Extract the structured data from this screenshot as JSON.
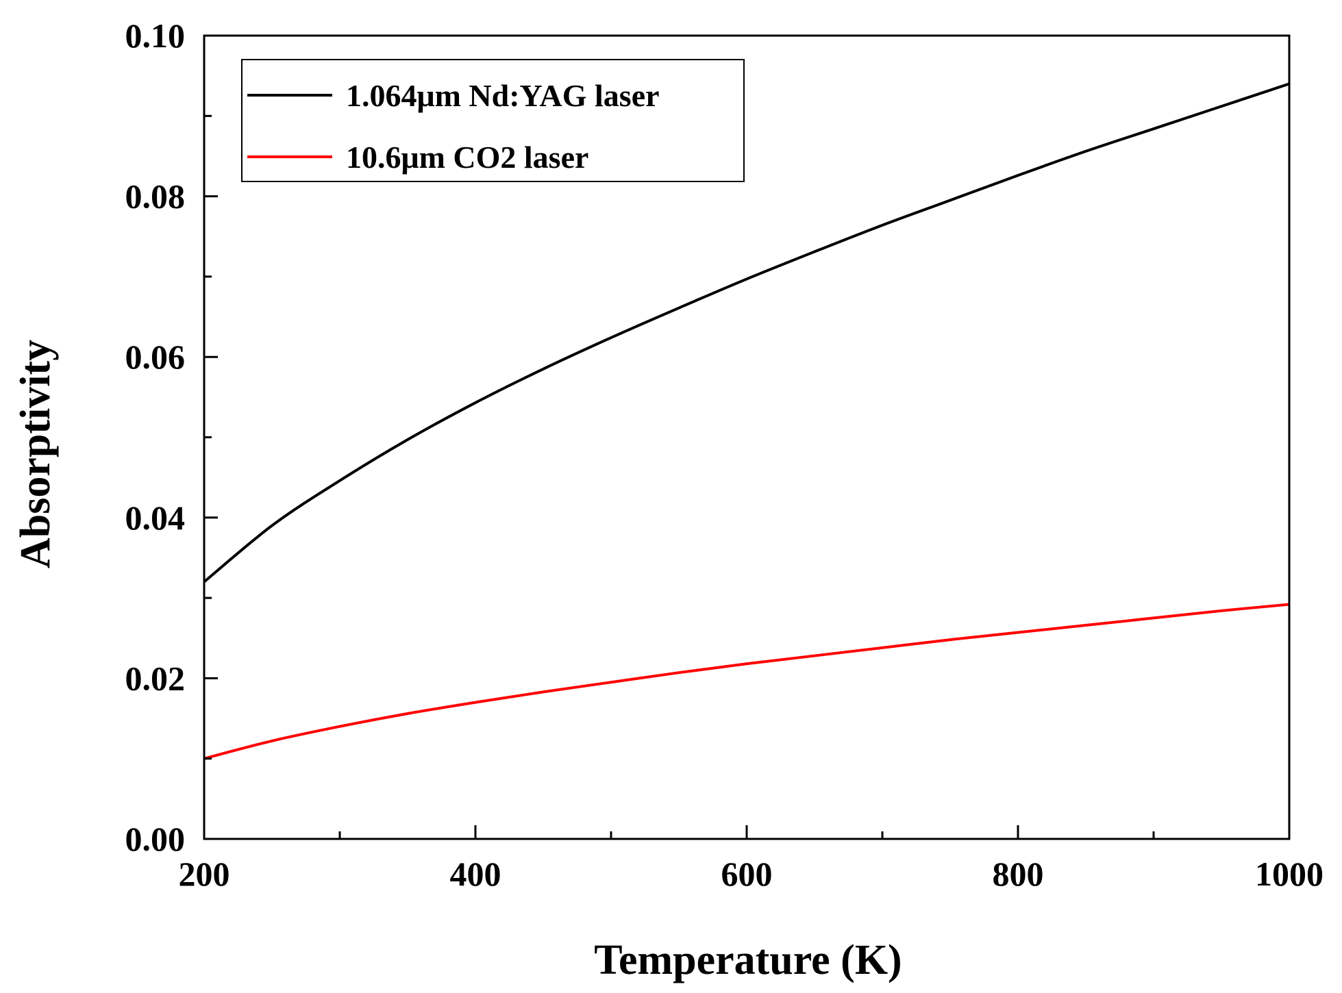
{
  "chart_data": {
    "type": "line",
    "title": "",
    "xlabel": "Temperature (K)",
    "ylabel": "Absorptivity",
    "xlim": [
      200,
      1000
    ],
    "ylim": [
      0.0,
      0.1
    ],
    "x_ticks": [
      200,
      400,
      600,
      800,
      1000
    ],
    "x_tick_labels": [
      "200",
      "400",
      "600",
      "800",
      "1000"
    ],
    "x_minor_ticks": [
      300,
      500,
      700,
      900
    ],
    "y_ticks": [
      0.0,
      0.02,
      0.04,
      0.06,
      0.08,
      0.1
    ],
    "y_tick_labels": [
      "0.00",
      "0.02",
      "0.04",
      "0.06",
      "0.08",
      "0.10"
    ],
    "y_minor_ticks": [
      0.01,
      0.03,
      0.05,
      0.07,
      0.09
    ],
    "grid": false,
    "legend_position": "top-left",
    "x": [
      200,
      250,
      300,
      350,
      400,
      450,
      500,
      550,
      600,
      650,
      700,
      750,
      800,
      850,
      900,
      950,
      1000
    ],
    "series": [
      {
        "name": "1.064μm Nd:YAG laser",
        "color": "#000000",
        "values": [
          0.032,
          0.039,
          0.0446,
          0.0497,
          0.0543,
          0.0585,
          0.0624,
          0.0661,
          0.0697,
          0.0731,
          0.0764,
          0.0795,
          0.0826,
          0.0856,
          0.0884,
          0.0912,
          0.094
        ]
      },
      {
        "name": "10.6μm CO2  laser",
        "color": "#ff0000",
        "values": [
          0.01,
          0.0122,
          0.014,
          0.0156,
          0.017,
          0.0183,
          0.0195,
          0.0207,
          0.0218,
          0.0228,
          0.0238,
          0.0248,
          0.0257,
          0.0266,
          0.0275,
          0.0284,
          0.0292
        ]
      }
    ]
  }
}
